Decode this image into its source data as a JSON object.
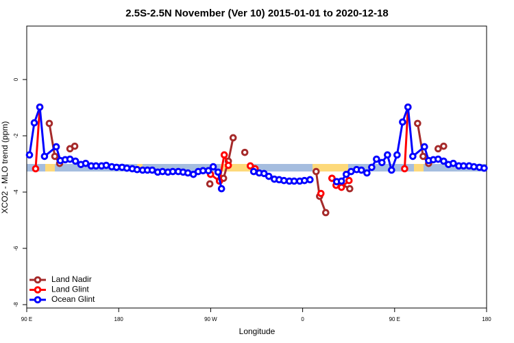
{
  "chart_data": {
    "type": "line",
    "title": "2.5S-2.5N November (Ver 10)   2015-01-01 to 2020-12-18",
    "x_label": "Longitude",
    "y_label": "XCO2 - MLO trend (ppm)",
    "xlim": [
      90,
      540
    ],
    "xticks": [
      {
        "value": 90,
        "label": "90 E"
      },
      180,
      {
        "value": 270,
        "label": "90 W"
      },
      {
        "value": 360,
        "label": "0"
      },
      {
        "value": 450,
        "label": "90 E"
      },
      {
        "value": 540,
        "label": "180"
      }
    ],
    "ylim": [
      -8.12,
      1.9
    ],
    "yticks": [
      0,
      -2,
      -4,
      -6,
      -8
    ],
    "legend": "bottom-left",
    "series": [
      {
        "name": "Land Nadir",
        "color": "#a52a2a",
        "x": [
          112.1,
          117.5,
          122.2,
          null,
          132.3,
          137.0,
          null,
          269.2,
          null,
          278.6,
          282.6,
          287.3,
          292.0,
          null,
          303.4,
          null,
          373.2,
          376.6,
          382.6,
          null,
          388.7,
          397.4,
          406.1,
          null,
          472.5,
          477.9,
          483.3,
          null,
          492.6,
          498.0
        ],
        "values": [
          -1.56,
          -2.73,
          -2.98,
          null,
          -2.46,
          -2.37,
          null,
          -3.71,
          null,
          -3.59,
          -3.51,
          -2.9,
          -2.07,
          null,
          -2.59,
          null,
          -3.27,
          -4.15,
          -4.73,
          null,
          -3.51,
          -3.71,
          -3.88,
          null,
          -1.56,
          -2.73,
          -2.98,
          null,
          -2.46,
          -2.37
        ]
      },
      {
        "name": "Land Glint",
        "color": "#ff0000",
        "x": [
          98.7,
          102.8,
          null,
          269.9,
          278.6,
          283.3,
          287.3,
          null,
          308.8,
          313.5,
          null,
          377.9,
          null,
          388.7,
          392.7,
          398.0,
          405.4,
          null,
          459.8,
          463.1
        ],
        "values": [
          -3.17,
          -0.98,
          null,
          -3.37,
          -3.61,
          -2.68,
          -3.05,
          null,
          -3.07,
          -3.17,
          null,
          -4.05,
          null,
          -3.51,
          -3.76,
          -3.83,
          -3.59,
          null,
          -3.17,
          -0.98
        ]
      },
      {
        "name": "Ocean Glint",
        "color": "#0000ff",
        "x": [
          92.7,
          97.4,
          102.8,
          107.4,
          118.9,
          122.9,
          127.6,
          132.3,
          137.7,
          143.0,
          147.7,
          153.1,
          157.8,
          163.2,
          167.8,
          173.2,
          177.9,
          183.3,
          188.0,
          193.3,
          198.0,
          203.4,
          208.1,
          212.8,
          218.2,
          222.9,
          228.2,
          232.9,
          238.3,
          243.0,
          247.7,
          253.1,
          257.8,
          262.5,
          267.8,
          272.5,
          277.2,
          280.6,
          null,
          312.1,
          317.5,
          322.2,
          326.9,
          332.3,
          337.0,
          341.7,
          347.0,
          351.7,
          357.1,
          361.8,
          367.2,
          null,
          393.3,
          398.0,
          402.7,
          407.4,
          412.8,
          417.5,
          422.9,
          427.6,
          432.3,
          437.6,
          443.0,
          447.0,
          452.4,
          457.8,
          463.1,
          467.8,
          479.2,
          483.3,
          487.9,
          492.6,
          498.0,
          502.7,
          507.4,
          512.8,
          517.5,
          522.9,
          527.6,
          533.0,
          537.6
        ],
        "values": [
          -2.68,
          -1.54,
          -0.98,
          -2.73,
          -2.39,
          -2.88,
          -2.85,
          -2.83,
          -2.9,
          -3.02,
          -2.98,
          -3.07,
          -3.07,
          -3.07,
          -3.05,
          -3.1,
          -3.12,
          -3.12,
          -3.15,
          -3.17,
          -3.2,
          -3.22,
          -3.22,
          -3.22,
          -3.29,
          -3.27,
          -3.29,
          -3.27,
          -3.27,
          -3.29,
          -3.32,
          -3.37,
          -3.27,
          -3.24,
          -3.24,
          -3.1,
          -3.29,
          -3.88,
          null,
          -3.27,
          -3.32,
          -3.34,
          -3.44,
          -3.54,
          -3.56,
          -3.59,
          -3.61,
          -3.61,
          -3.61,
          -3.59,
          -3.56,
          null,
          -3.63,
          -3.61,
          -3.37,
          -3.27,
          -3.2,
          -3.22,
          -3.32,
          -3.12,
          -2.83,
          -2.95,
          -2.68,
          -3.22,
          -2.68,
          -1.51,
          -0.98,
          -2.73,
          -2.39,
          -2.88,
          -2.85,
          -2.83,
          -2.9,
          -3.02,
          -2.98,
          -3.07,
          -3.07,
          -3.07,
          -3.1,
          -3.12,
          -3.15
        ]
      }
    ]
  }
}
